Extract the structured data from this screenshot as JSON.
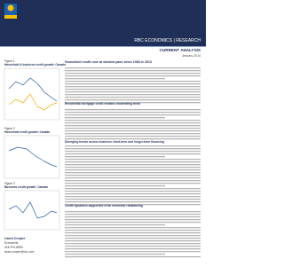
{
  "header": {
    "brand": "RBC ECONOMICS | RESEARCH",
    "series": "CURRENT ANALYSIS",
    "date": "January 2014"
  },
  "figures": [
    {
      "label": "Figure 1",
      "title": "Household & business credit growth: Canada"
    },
    {
      "label": "Figure 2",
      "title": "Household credit growth: Canada"
    },
    {
      "label": "Figure 3",
      "title": "Business credit growth: Canada"
    }
  ],
  "article": {
    "title": "Household credit rose at slowest pace since 1983 in 2013",
    "sections": [
      "Residential mortgage credit remains moderating trend",
      "Diverging trends across business short-term and longer-term financing",
      "Credit dynamics supportive of an economic rebalancing"
    ]
  },
  "author": {
    "name": "Laura Cooper",
    "role": "Economist",
    "phone": "416-974-8593",
    "email": "laura.cooper@rbc.com"
  }
}
